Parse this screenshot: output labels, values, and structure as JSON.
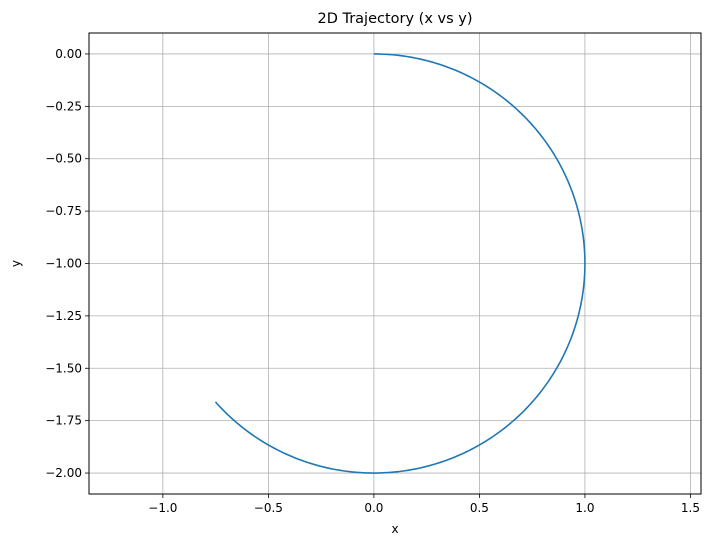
{
  "chart_data": {
    "type": "line",
    "title": "2D Trajectory (x vs y)",
    "xlabel": "x",
    "ylabel": "y",
    "xlim": [
      -1.35,
      1.55
    ],
    "ylim": [
      -2.1,
      0.1
    ],
    "xticks": [
      -1.0,
      -0.5,
      0.0,
      0.5,
      1.0,
      1.5
    ],
    "xtick_labels": [
      "−1.0",
      "−0.5",
      "0.0",
      "0.5",
      "1.0",
      "1.5"
    ],
    "yticks": [
      0.0,
      -0.25,
      -0.5,
      -0.75,
      -1.0,
      -1.25,
      -1.5,
      -1.75,
      -2.0
    ],
    "ytick_labels": [
      "0.00",
      "−0.25",
      "−0.50",
      "−0.75",
      "−1.00",
      "−1.25",
      "−1.50",
      "−1.75",
      "−2.00"
    ],
    "grid": true,
    "series": [
      {
        "color": "#1f77b4",
        "shape": "circular arc centered at (0, -1), radius 1, clockwise from (0, 0) to approximately (-0.75, -1.66)",
        "x": [
          0.0,
          0.259,
          0.5,
          0.707,
          0.866,
          0.966,
          1.0,
          0.966,
          0.866,
          0.707,
          0.5,
          0.259,
          0.0,
          -0.259,
          -0.5,
          -0.643,
          -0.75
        ],
        "y": [
          0.0,
          -0.034,
          -0.134,
          -0.293,
          -0.5,
          -0.741,
          -1.0,
          -1.259,
          -1.5,
          -1.707,
          -1.866,
          -1.966,
          -2.0,
          -1.966,
          -1.866,
          -1.766,
          -1.66
        ]
      }
    ]
  }
}
